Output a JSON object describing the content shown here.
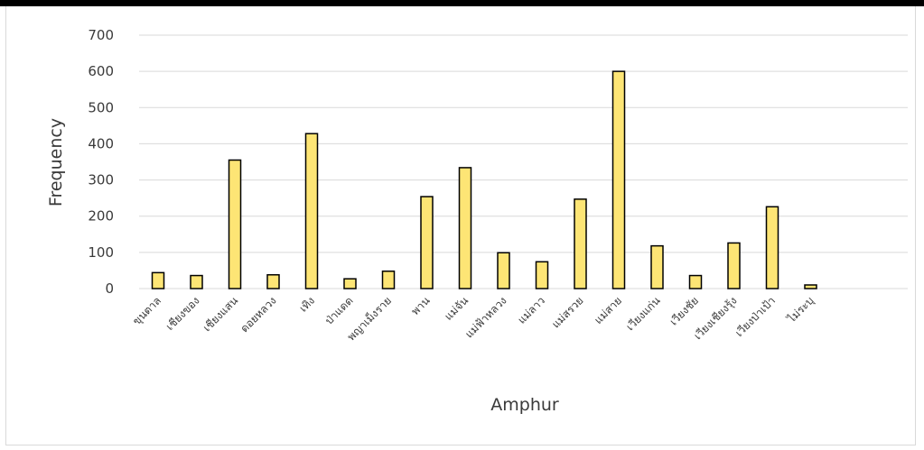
{
  "chart_data": {
    "type": "bar",
    "categories": [
      "ขุนตาล",
      "เชียงของ",
      "เชียงแสน",
      "ดอยหลวง",
      "เทิง",
      "ป่าแดด",
      "พญาเม็งราย",
      "พาน",
      "แม่จัน",
      "แม่ฟ้าหลวง",
      "แม่ลาว",
      "แม่สรวย",
      "แม่สาย",
      "เวียงแก่น",
      "เวียงชัย",
      "เวียงเชียงรุ้ง",
      "เวียงป่าเป้า",
      "ไม่ระบุ"
    ],
    "values": [
      44,
      36,
      355,
      38,
      428,
      27,
      48,
      254,
      334,
      99,
      74,
      247,
      600,
      118,
      36,
      126,
      226,
      10
    ],
    "title": "",
    "xlabel": "Amphur",
    "ylabel": "Frequency",
    "ylim": [
      0,
      700
    ],
    "yticks": [
      0,
      100,
      200,
      300,
      400,
      500,
      600,
      700
    ],
    "grid": true,
    "bar_color": "#fde575",
    "bar_edge_color": "#000000"
  }
}
